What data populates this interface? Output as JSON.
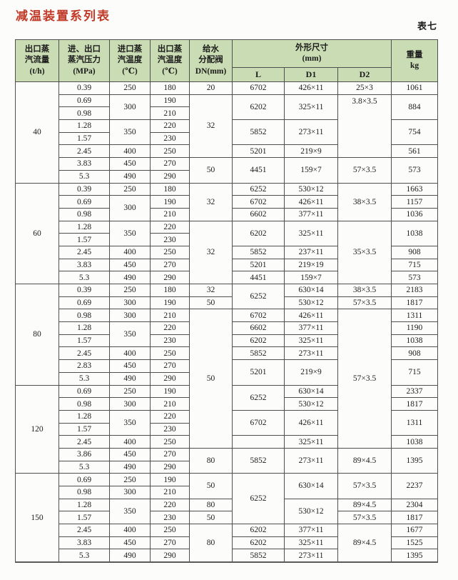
{
  "page": {
    "title": "减温装置系列表",
    "table_label": "表七"
  },
  "colors": {
    "title_color": "#c13a28",
    "header_bg": "#cadcb3",
    "border_color": "#4f4f4f"
  },
  "headers": {
    "flow": "出口蒸\n汽流量\n(t/h)",
    "pressure": "进、出口\n蒸汽压力\n(MPa)",
    "temp_in": "进口蒸\n汽温度\n(℃)",
    "temp_out": "出口蒸\n汽温度\n(℃)",
    "valve": "给水\n分配阀\nDN(mm)",
    "dims": "外形尺寸\n(mm)",
    "dim_l": "L",
    "dim_d1": "D1",
    "dim_d2": "D2",
    "weight": "重量\nkg"
  },
  "rows": [
    [
      {
        "t": "40",
        "rs": 8
      },
      {
        "t": "0.39"
      },
      {
        "t": "250"
      },
      {
        "t": "180"
      },
      {
        "t": "20"
      },
      {
        "t": "6702"
      },
      {
        "t": "426×11"
      },
      {
        "t": "25×3"
      },
      {
        "t": "1061"
      }
    ],
    [
      {
        "t": "0.69"
      },
      {
        "t": "300",
        "rs": 2
      },
      {
        "t": "190"
      },
      {
        "t": "32",
        "rs": 5
      },
      {
        "t": "6202",
        "rs": 2
      },
      {
        "t": "325×11",
        "rs": 2
      },
      {
        "t": "3.8×3.5",
        "rs": 5,
        "cls": "va-top"
      },
      {
        "t": "884",
        "rs": 2
      }
    ],
    [
      {
        "t": "0.98"
      },
      {
        "t": "210"
      }
    ],
    [
      {
        "t": "1.28"
      },
      {
        "t": "350",
        "rs": 2
      },
      {
        "t": "220"
      },
      {
        "t": "5852",
        "rs": 2
      },
      {
        "t": "273×11",
        "rs": 2
      },
      {
        "t": "754",
        "rs": 2
      }
    ],
    [
      {
        "t": "1.57"
      },
      {
        "t": "230"
      }
    ],
    [
      {
        "t": "2.45"
      },
      {
        "t": "400"
      },
      {
        "t": "250"
      },
      {
        "t": "5201"
      },
      {
        "t": "219×9"
      },
      {
        "t": "561"
      }
    ],
    [
      {
        "t": "3.83"
      },
      {
        "t": "450"
      },
      {
        "t": "270"
      },
      {
        "t": "50",
        "rs": 2
      },
      {
        "t": "4451",
        "rs": 2
      },
      {
        "t": "159×7",
        "rs": 2
      },
      {
        "t": "57×3.5",
        "rs": 2
      },
      {
        "t": "573",
        "rs": 2
      }
    ],
    [
      {
        "t": "5.3"
      },
      {
        "t": "490"
      },
      {
        "t": "290"
      }
    ],
    [
      {
        "t": "60",
        "rs": 8
      },
      {
        "t": "0.39"
      },
      {
        "t": "250"
      },
      {
        "t": "180"
      },
      {
        "t": "32",
        "rs": 3
      },
      {
        "t": "6252"
      },
      {
        "t": "530×12"
      },
      {
        "t": "38×3.5",
        "rs": 3
      },
      {
        "t": "1663"
      }
    ],
    [
      {
        "t": "0.69"
      },
      {
        "t": "300",
        "rs": 2
      },
      {
        "t": "190"
      },
      {
        "t": "6702"
      },
      {
        "t": "426×11"
      },
      {
        "t": "1157"
      }
    ],
    [
      {
        "t": "0.98"
      },
      {
        "t": "210"
      },
      {
        "t": "6602"
      },
      {
        "t": "377×11"
      },
      {
        "t": "1036"
      }
    ],
    [
      {
        "t": "1.28"
      },
      {
        "t": "350",
        "rs": 2
      },
      {
        "t": "220"
      },
      {
        "t": "32",
        "rs": 5
      },
      {
        "t": "6202",
        "rs": 2
      },
      {
        "t": "325×11",
        "rs": 2
      },
      {
        "t": "35×3.5",
        "rs": 5
      },
      {
        "t": "1038",
        "rs": 2
      }
    ],
    [
      {
        "t": "1.57"
      },
      {
        "t": "230"
      }
    ],
    [
      {
        "t": "2.45"
      },
      {
        "t": "400"
      },
      {
        "t": "250"
      },
      {
        "t": "5852"
      },
      {
        "t": "237×11"
      },
      {
        "t": "908"
      }
    ],
    [
      {
        "t": "3.83"
      },
      {
        "t": "450"
      },
      {
        "t": "270"
      },
      {
        "t": "5201"
      },
      {
        "t": "219×19"
      },
      {
        "t": "715"
      }
    ],
    [
      {
        "t": "5.3"
      },
      {
        "t": "490"
      },
      {
        "t": "290"
      },
      {
        "t": "4451"
      },
      {
        "t": "159×7"
      },
      {
        "t": "573"
      }
    ],
    [
      {
        "t": "80",
        "rs": 8
      },
      {
        "t": "0.39"
      },
      {
        "t": "250"
      },
      {
        "t": "180"
      },
      {
        "t": "32"
      },
      {
        "t": "6252",
        "rs": 2
      },
      {
        "t": "630×14"
      },
      {
        "t": "38×3.5"
      },
      {
        "t": "2183"
      }
    ],
    [
      {
        "t": "0.69"
      },
      {
        "t": "300"
      },
      {
        "t": "190"
      },
      {
        "t": "50"
      },
      {
        "t": "530×12"
      },
      {
        "t": "57×3.5"
      },
      {
        "t": "1817"
      }
    ],
    [
      {
        "t": "0.98"
      },
      {
        "t": "300"
      },
      {
        "t": "210"
      },
      {
        "t": "50",
        "rs": 11
      },
      {
        "t": "6702"
      },
      {
        "t": "426×11"
      },
      {
        "t": "57×3.5",
        "rs": 11
      },
      {
        "t": "1311"
      }
    ],
    [
      {
        "t": "1.28"
      },
      {
        "t": "350",
        "rs": 2
      },
      {
        "t": "220"
      },
      {
        "t": "6602"
      },
      {
        "t": "377×11"
      },
      {
        "t": "1190"
      }
    ],
    [
      {
        "t": "1.57"
      },
      {
        "t": "230"
      },
      {
        "t": "6202"
      },
      {
        "t": "325×11"
      },
      {
        "t": "1038"
      }
    ],
    [
      {
        "t": "2.45"
      },
      {
        "t": "400"
      },
      {
        "t": "250"
      },
      {
        "t": "5852"
      },
      {
        "t": "273×11"
      },
      {
        "t": "908"
      }
    ],
    [
      {
        "t": "2.83"
      },
      {
        "t": "450"
      },
      {
        "t": "270"
      },
      {
        "t": "5201",
        "rs": 2
      },
      {
        "t": "219×9",
        "rs": 2
      },
      {
        "t": "715",
        "rs": 2
      }
    ],
    [
      {
        "t": "5.3"
      },
      {
        "t": "490"
      },
      {
        "t": "290"
      }
    ],
    [
      {
        "t": "120",
        "rs": 7
      },
      {
        "t": "0.69"
      },
      {
        "t": "250"
      },
      {
        "t": "190"
      },
      {
        "t": "6252",
        "rs": 2
      },
      {
        "t": "630×14"
      },
      {
        "t": "2337"
      }
    ],
    [
      {
        "t": "0.98"
      },
      {
        "t": "300"
      },
      {
        "t": "210"
      },
      {
        "t": "530×12"
      },
      {
        "t": "1817"
      }
    ],
    [
      {
        "t": "1.28"
      },
      {
        "t": "350",
        "rs": 2
      },
      {
        "t": "220"
      },
      {
        "t": "6702",
        "rs": 2
      },
      {
        "t": "426×11",
        "rs": 2
      },
      {
        "t": "1311",
        "rs": 2
      }
    ],
    [
      {
        "t": "1.57"
      },
      {
        "t": "230"
      }
    ],
    [
      {
        "t": "2.45"
      },
      {
        "t": "400"
      },
      {
        "t": "250"
      },
      {
        "t": ""
      },
      {
        "t": "325×11"
      },
      {
        "t": "1038"
      }
    ],
    [
      {
        "t": "3.86"
      },
      {
        "t": "450"
      },
      {
        "t": "270"
      },
      {
        "t": "80",
        "rs": 2
      },
      {
        "t": "5852",
        "rs": 2
      },
      {
        "t": "273×11",
        "rs": 2
      },
      {
        "t": "89×4.5",
        "rs": 2
      },
      {
        "t": "1395",
        "rs": 2
      }
    ],
    [
      {
        "t": "5.3"
      },
      {
        "t": "490"
      },
      {
        "t": "290"
      }
    ],
    [
      {
        "t": "150",
        "rs": 7
      },
      {
        "t": "0.69"
      },
      {
        "t": "250"
      },
      {
        "t": "190"
      },
      {
        "t": "50",
        "rs": 2
      },
      {
        "t": "6252",
        "rs": 4
      },
      {
        "t": "630×14",
        "rs": 2
      },
      {
        "t": "57×3.5",
        "rs": 2
      },
      {
        "t": "2237",
        "rs": 2
      }
    ],
    [
      {
        "t": "0.98"
      },
      {
        "t": "300"
      },
      {
        "t": "210"
      }
    ],
    [
      {
        "t": "1.28"
      },
      {
        "t": "350",
        "rs": 2
      },
      {
        "t": "220"
      },
      {
        "t": "80"
      },
      {
        "t": "530×12",
        "rs": 2
      },
      {
        "t": "89×4.5"
      },
      {
        "t": "2304"
      }
    ],
    [
      {
        "t": "1.57"
      },
      {
        "t": "230"
      },
      {
        "t": "50"
      },
      {
        "t": "57×3.5"
      },
      {
        "t": "1817"
      }
    ],
    [
      {
        "t": "2.45"
      },
      {
        "t": "400"
      },
      {
        "t": "250"
      },
      {
        "t": "80",
        "rs": 3
      },
      {
        "t": "6202"
      },
      {
        "t": "377×11"
      },
      {
        "t": "89×4.5",
        "rs": 3
      },
      {
        "t": "1677"
      }
    ],
    [
      {
        "t": "3.83"
      },
      {
        "t": "450"
      },
      {
        "t": "270"
      },
      {
        "t": "6202"
      },
      {
        "t": "325×11"
      },
      {
        "t": "1525"
      }
    ],
    [
      {
        "t": "5.3"
      },
      {
        "t": "490"
      },
      {
        "t": "290"
      },
      {
        "t": "5852"
      },
      {
        "t": "273×11"
      },
      {
        "t": "1395"
      }
    ]
  ]
}
